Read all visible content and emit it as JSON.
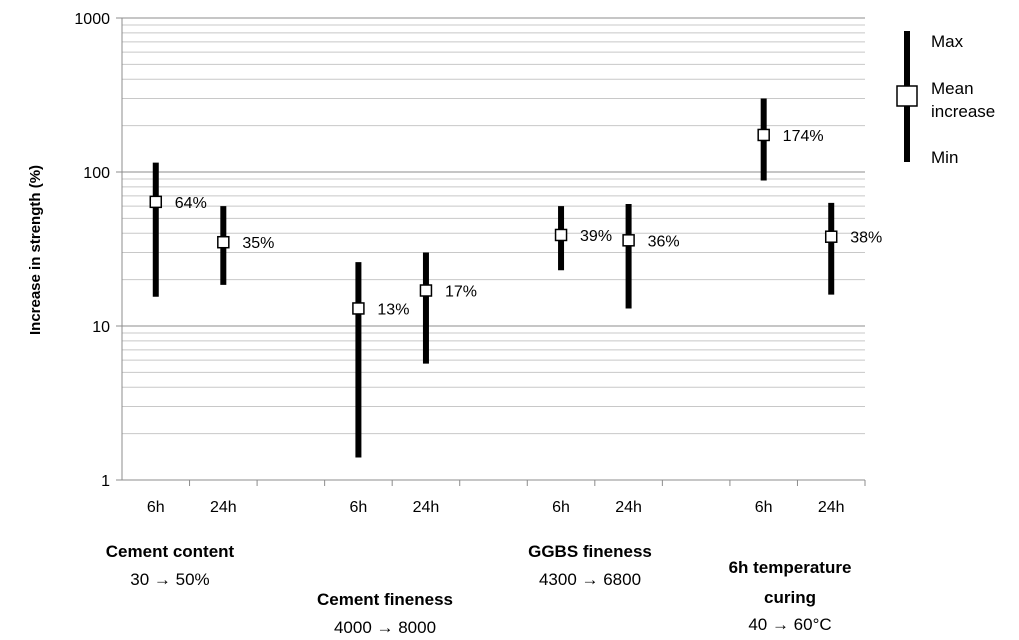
{
  "chart_data": {
    "type": "range",
    "ylabel": "Increase in strength (%)",
    "yscale": "log",
    "ylim": [
      1,
      1000
    ],
    "yticks": [
      "1",
      "10",
      "100",
      "1000"
    ],
    "grid": true,
    "categories": [
      "6h",
      "24h",
      "6h",
      "24h",
      "6h",
      "24h",
      "6h",
      "24h"
    ],
    "groups": [
      {
        "title": "Cement content",
        "subtitle": "30 → 50%",
        "points": [
          0,
          1
        ]
      },
      {
        "title": "Cement fineness",
        "subtitle": "4000 → 8000",
        "points": [
          2,
          3
        ]
      },
      {
        "title": "GGBS fineness",
        "subtitle": "4300 → 6800",
        "points": [
          4,
          5
        ]
      },
      {
        "title": "6h temperature curing",
        "title_lines": [
          "6h temperature",
          "curing"
        ],
        "subtitle": "40 → 60°C",
        "points": [
          6,
          7
        ]
      }
    ],
    "series": [
      {
        "name": "Max",
        "values": [
          115,
          60,
          26,
          30,
          60,
          62,
          300,
          63
        ]
      },
      {
        "name": "Mean increase",
        "values": [
          64,
          35,
          13,
          17,
          39,
          36,
          174,
          38
        ]
      },
      {
        "name": "Min",
        "values": [
          15.5,
          18.5,
          1.4,
          5.7,
          23,
          13,
          88,
          16
        ]
      }
    ],
    "data_labels": [
      "64%",
      "35%",
      "13%",
      "17%",
      "39%",
      "36%",
      "174%",
      "38%"
    ],
    "legend": {
      "position": "top-right",
      "entries": [
        "Max",
        "Mean increase",
        "Min"
      ],
      "mean_lines": [
        "Mean",
        "increase"
      ]
    }
  }
}
